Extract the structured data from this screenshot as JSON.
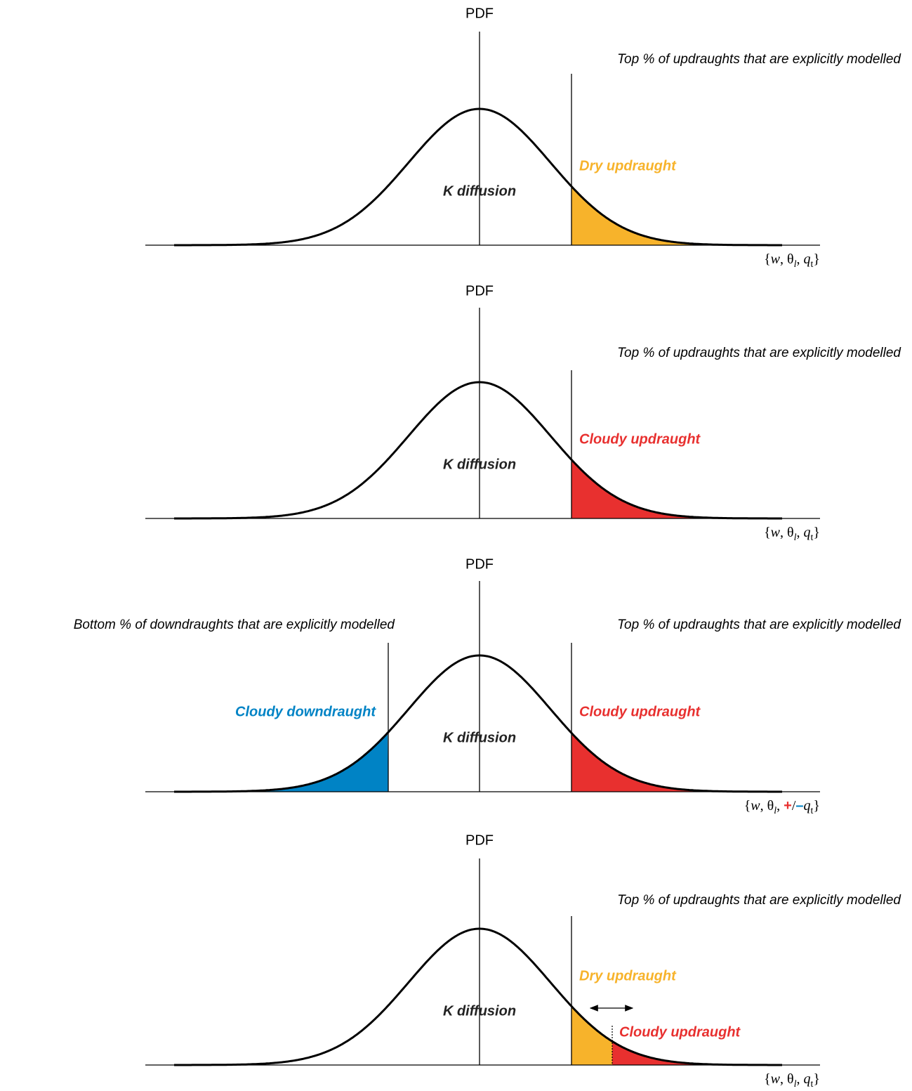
{
  "panels": [
    {
      "y_label": "PDF",
      "annotations": [
        "Top % of updraughts that are explicitly modelled"
      ],
      "regions": [
        "Dry updraught"
      ],
      "center_label": "K diffusion",
      "x_label": [
        "{",
        "w",
        ", θ",
        "l",
        ", ",
        "q",
        "t",
        "}"
      ]
    },
    {
      "y_label": "PDF",
      "annotations": [
        "Top % of updraughts that are explicitly modelled"
      ],
      "regions": [
        "Cloudy updraught"
      ],
      "center_label": "K diffusion",
      "x_label": [
        "{",
        "w",
        ", θ",
        "l",
        ", ",
        "q",
        "t",
        "}"
      ]
    },
    {
      "y_label": "PDF",
      "annotations": [
        "Bottom % of downdraughts that are explicitly modelled",
        "Top % of updraughts that are explicitly modelled"
      ],
      "regions": [
        "Cloudy downdraught",
        "Cloudy updraught"
      ],
      "center_label": "K diffusion",
      "x_label": [
        "{",
        "w",
        ", θ",
        "l",
        ", ",
        "+",
        "/",
        "–",
        "q",
        "t",
        "}"
      ]
    },
    {
      "y_label": "PDF",
      "annotations": [
        "Top % of updraughts that are explicitly modelled"
      ],
      "regions": [
        "Dry updraught",
        "Cloudy updraught"
      ],
      "center_label": "K diffusion",
      "x_label": [
        "{",
        "w",
        ", θ",
        "l",
        ", ",
        "q",
        "t",
        "}"
      ]
    }
  ]
}
